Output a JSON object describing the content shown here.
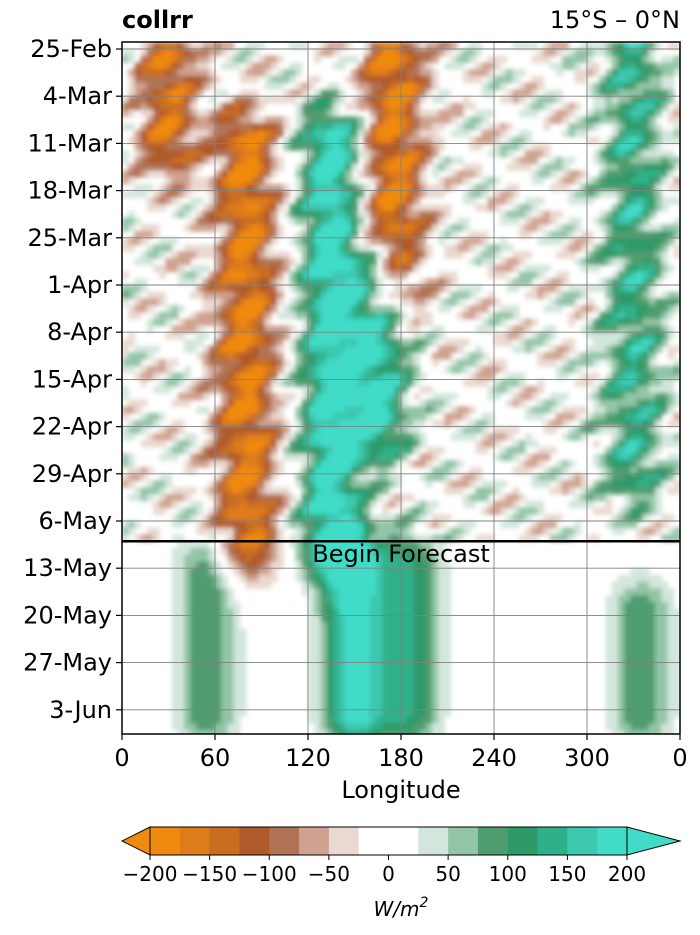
{
  "title_left": "collrr",
  "title_right": "15°S – 0°N",
  "chart_data": {
    "type": "heatmap",
    "xlabel": "Longitude",
    "ylabel": "",
    "xlim": [
      0,
      360
    ],
    "x_ticks": [
      "0",
      "60",
      "120",
      "180",
      "240",
      "300",
      "0"
    ],
    "x_tick_values": [
      0,
      60,
      120,
      180,
      240,
      300,
      360
    ],
    "y_ticks": [
      "25-Feb",
      "4-Mar",
      "11-Mar",
      "18-Mar",
      "25-Mar",
      "1-Apr",
      "8-Apr",
      "15-Apr",
      "22-Apr",
      "29-Apr",
      "6-May",
      "13-May",
      "20-May",
      "27-May",
      "3-Jun"
    ],
    "grid": true,
    "forecast_marker": {
      "date": "9-May",
      "label": "Begin Forecast"
    },
    "colorbar": {
      "label": "W/m",
      "label_exponent": "2",
      "levels": [
        -200,
        -175,
        -150,
        -125,
        -100,
        -75,
        -50,
        -25,
        25,
        50,
        75,
        100,
        125,
        150,
        175,
        200
      ],
      "tick_labels": [
        "−200",
        "−150",
        "−100",
        "−50",
        "0",
        "50",
        "100",
        "150",
        "200"
      ],
      "tick_values": [
        -200,
        -150,
        -100,
        -50,
        0,
        50,
        100,
        150,
        200
      ],
      "colors": [
        "#f08a0f",
        "#df7c1a",
        "#c96d20",
        "#b05a2c",
        "#b07355",
        "#cfa190",
        "#e9d9d0",
        "#ffffff",
        "#d3e6db",
        "#93c4a7",
        "#4f9d6f",
        "#2e9a6a",
        "#30b08a",
        "#3cc7b0",
        "#41dcc8"
      ],
      "extend": "both"
    },
    "features": [
      {
        "type": "negative",
        "description_lon": 30,
        "start": "25-Feb",
        "end": "11-Mar",
        "value": -150
      },
      {
        "type": "negative",
        "description_lon": 80,
        "start": "11-Mar",
        "end": "9-May",
        "value": -175
      },
      {
        "type": "negative",
        "description_lon": 175,
        "start": "25-Feb",
        "end": "1-Apr",
        "value": -175
      },
      {
        "type": "positive",
        "description_lon": 135,
        "start": "11-Mar",
        "end": "9-May",
        "value": 200
      },
      {
        "type": "positive",
        "description_lon": 165,
        "start": "1-Apr",
        "end": "22-Apr",
        "value": 175
      },
      {
        "type": "positive",
        "description_lon": 330,
        "start": "25-Feb",
        "end": "29-Apr",
        "value": 125
      },
      {
        "type": "positive",
        "description_lon": 150,
        "start": "13-May",
        "end": "3-Jun",
        "value": 200
      },
      {
        "type": "positive",
        "description_lon": 55,
        "start": "13-May",
        "end": "3-Jun",
        "value": 100
      },
      {
        "type": "positive",
        "description_lon": 185,
        "start": "13-May",
        "end": "3-Jun",
        "value": 125
      },
      {
        "type": "positive",
        "description_lon": 335,
        "start": "20-May",
        "end": "3-Jun",
        "value": 100
      }
    ]
  }
}
